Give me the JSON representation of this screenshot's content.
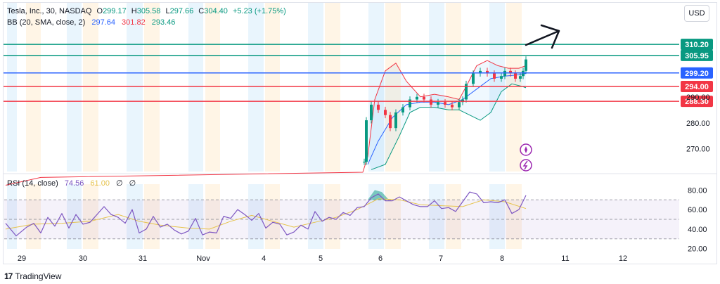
{
  "header": {
    "symbol_title": "Tesla, Inc., 30, NASDAQ",
    "ohlc": {
      "o_label": "O",
      "o_value": "299.17",
      "h_label": "H",
      "h_value": "305.58",
      "l_label": "L",
      "l_value": "297.66",
      "c_label": "C",
      "c_value": "304.40",
      "change": "+5.23 (+1.75%)"
    },
    "bb_label": "BB (20, SMA, close, 2)",
    "bb_values": [
      "297.64",
      "301.82",
      "293.46"
    ]
  },
  "rsi_legend": {
    "label": "RSI (14, close)",
    "values": [
      "74.56",
      "61.00"
    ],
    "extras": [
      "∅",
      "∅"
    ]
  },
  "currency_button": "USD",
  "footer_brand": "TradingView",
  "colors": {
    "up": "#089981",
    "down": "#f23645",
    "bb_basis": "#2962ff",
    "bb_upper": "#f23645",
    "bb_lower": "#089981",
    "rsi": "#7e57c2",
    "rsi_ma": "#e6c34d",
    "level_teal": "#089981",
    "level_blue": "#2962ff",
    "level_red": "#f23645"
  },
  "icons": [
    "arrow-right-icon",
    "plus-circle-icon",
    "lightning-icon",
    "tradingview-logo-icon"
  ],
  "chart_data": [
    {
      "type": "candlestick",
      "title": "Tesla, Inc., 30, NASDAQ",
      "x_ticks": [
        "29",
        "30",
        "31",
        "Nov",
        "4",
        "5",
        "6",
        "7",
        "8",
        "11",
        "12"
      ],
      "y_ticks": [
        "270.00",
        "280.00",
        "290.00"
      ],
      "ylim": [
        261,
        317
      ],
      "horizontal_levels": [
        {
          "value": 310.2,
          "label": "310.20",
          "color": "#089981"
        },
        {
          "value": 305.95,
          "label": "305.95",
          "color": "#089981"
        },
        {
          "value": 299.2,
          "label": "299.20",
          "color": "#2962ff"
        },
        {
          "value": 294.0,
          "label": "294.00",
          "color": "#f23645"
        },
        {
          "value": 288.3,
          "label": "288.30",
          "color": "#f23645"
        }
      ],
      "close_series": [
        {
          "t": 0,
          "v": 265
        },
        {
          "t": 51.0,
          "v": 265
        },
        {
          "t": 51.3,
          "v": 281
        },
        {
          "t": 52,
          "v": 287
        },
        {
          "t": 53,
          "v": 285
        },
        {
          "t": 54,
          "v": 283
        },
        {
          "t": 54.7,
          "v": 278
        },
        {
          "t": 55.5,
          "v": 284
        },
        {
          "t": 56.5,
          "v": 286
        },
        {
          "t": 57.5,
          "v": 289
        },
        {
          "t": 58.5,
          "v": 290
        },
        {
          "t": 59.5,
          "v": 289
        },
        {
          "t": 60.5,
          "v": 287
        },
        {
          "t": 61.5,
          "v": 288
        },
        {
          "t": 62.5,
          "v": 287
        },
        {
          "t": 63.5,
          "v": 286
        },
        {
          "t": 64.5,
          "v": 288
        },
        {
          "t": 65.0,
          "v": 289
        },
        {
          "t": 65.5,
          "v": 295
        },
        {
          "t": 66.5,
          "v": 299
        },
        {
          "t": 67.5,
          "v": 300
        },
        {
          "t": 68.5,
          "v": 299
        },
        {
          "t": 69.5,
          "v": 297
        },
        {
          "t": 70.5,
          "v": 298
        },
        {
          "t": 71.0,
          "v": 300
        },
        {
          "t": 71.8,
          "v": 299
        },
        {
          "t": 72.5,
          "v": 297
        },
        {
          "t": 73.2,
          "v": 298
        },
        {
          "t": 73.6,
          "v": 300
        },
        {
          "t": 74.0,
          "v": 304.4
        }
      ],
      "bollinger": {
        "basis": [
          {
            "t": 51.5,
            "v": 264
          },
          {
            "t": 53,
            "v": 273
          },
          {
            "t": 55,
            "v": 282
          },
          {
            "t": 57,
            "v": 287
          },
          {
            "t": 59,
            "v": 288
          },
          {
            "t": 61,
            "v": 288
          },
          {
            "t": 63,
            "v": 287
          },
          {
            "t": 65,
            "v": 289
          },
          {
            "t": 67,
            "v": 293
          },
          {
            "t": 69,
            "v": 297
          },
          {
            "t": 71,
            "v": 298
          },
          {
            "t": 73,
            "v": 298.5
          },
          {
            "t": 74,
            "v": 299
          }
        ],
        "upper": [
          {
            "t": 0,
            "v": 256
          },
          {
            "t": 5,
            "v": 259
          },
          {
            "t": 50.8,
            "v": 261
          },
          {
            "t": 51.5,
            "v": 267
          },
          {
            "t": 52.5,
            "v": 289
          },
          {
            "t": 54,
            "v": 300
          },
          {
            "t": 55.5,
            "v": 303
          },
          {
            "t": 57,
            "v": 296
          },
          {
            "t": 59,
            "v": 290
          },
          {
            "t": 61,
            "v": 291
          },
          {
            "t": 63,
            "v": 290
          },
          {
            "t": 64.5,
            "v": 289
          },
          {
            "t": 65.5,
            "v": 294
          },
          {
            "t": 67,
            "v": 302
          },
          {
            "t": 68.5,
            "v": 304
          },
          {
            "t": 70,
            "v": 302
          },
          {
            "t": 71.5,
            "v": 301
          },
          {
            "t": 73,
            "v": 301
          },
          {
            "t": 74,
            "v": 302
          }
        ],
        "lower": [
          {
            "t": 52,
            "v": 262
          },
          {
            "t": 54,
            "v": 264
          },
          {
            "t": 56,
            "v": 275
          },
          {
            "t": 57.5,
            "v": 284
          },
          {
            "t": 59,
            "v": 286
          },
          {
            "t": 61,
            "v": 286
          },
          {
            "t": 63,
            "v": 285
          },
          {
            "t": 64.5,
            "v": 285
          },
          {
            "t": 66,
            "v": 283
          },
          {
            "t": 67.5,
            "v": 281
          },
          {
            "t": 69,
            "v": 284
          },
          {
            "t": 70.5,
            "v": 292
          },
          {
            "t": 72,
            "v": 295
          },
          {
            "t": 73.5,
            "v": 294
          },
          {
            "t": 74,
            "v": 293.5
          }
        ]
      }
    },
    {
      "type": "line",
      "title": "RSI (14, close)",
      "y_ticks": [
        "80.00",
        "60.00",
        "40.00",
        "20.00"
      ],
      "ylim": [
        14,
        86
      ],
      "bands": {
        "upper": 70,
        "middle": 50,
        "lower": 30
      },
      "series": [
        {
          "name": "RSI",
          "values": [
            {
              "t": 0,
              "v": 46
            },
            {
              "t": 1.5,
              "v": 33
            },
            {
              "t": 3,
              "v": 42
            },
            {
              "t": 4,
              "v": 46
            },
            {
              "t": 5,
              "v": 36
            },
            {
              "t": 6,
              "v": 52
            },
            {
              "t": 7,
              "v": 43
            },
            {
              "t": 8,
              "v": 56
            },
            {
              "t": 9,
              "v": 41
            },
            {
              "t": 10,
              "v": 55
            },
            {
              "t": 11,
              "v": 45
            },
            {
              "t": 12,
              "v": 47
            },
            {
              "t": 13,
              "v": 55
            },
            {
              "t": 14,
              "v": 63
            },
            {
              "t": 15,
              "v": 55
            },
            {
              "t": 16,
              "v": 52
            },
            {
              "t": 17,
              "v": 46
            },
            {
              "t": 18,
              "v": 60
            },
            {
              "t": 19,
              "v": 36
            },
            {
              "t": 20,
              "v": 40
            },
            {
              "t": 21,
              "v": 53
            },
            {
              "t": 22,
              "v": 42
            },
            {
              "t": 23,
              "v": 45
            },
            {
              "t": 24,
              "v": 39
            },
            {
              "t": 25,
              "v": 35
            },
            {
              "t": 26,
              "v": 38
            },
            {
              "t": 27,
              "v": 51
            },
            {
              "t": 28,
              "v": 34
            },
            {
              "t": 29,
              "v": 37
            },
            {
              "t": 30,
              "v": 36
            },
            {
              "t": 31,
              "v": 53
            },
            {
              "t": 32,
              "v": 51
            },
            {
              "t": 33,
              "v": 60
            },
            {
              "t": 34,
              "v": 55
            },
            {
              "t": 35,
              "v": 49
            },
            {
              "t": 36,
              "v": 56
            },
            {
              "t": 37,
              "v": 41
            },
            {
              "t": 38,
              "v": 47
            },
            {
              "t": 39,
              "v": 45
            },
            {
              "t": 40,
              "v": 34
            },
            {
              "t": 41,
              "v": 37
            },
            {
              "t": 42,
              "v": 44
            },
            {
              "t": 43,
              "v": 40
            },
            {
              "t": 44,
              "v": 58
            },
            {
              "t": 45,
              "v": 48
            },
            {
              "t": 46,
              "v": 52
            },
            {
              "t": 47,
              "v": 50
            },
            {
              "t": 48,
              "v": 57
            },
            {
              "t": 49,
              "v": 54
            },
            {
              "t": 50,
              "v": 62
            },
            {
              "t": 51,
              "v": 63
            },
            {
              "t": 52,
              "v": 72
            },
            {
              "t": 53,
              "v": 76
            },
            {
              "t": 54,
              "v": 69
            },
            {
              "t": 55,
              "v": 69
            },
            {
              "t": 56,
              "v": 73
            },
            {
              "t": 57,
              "v": 69
            },
            {
              "t": 58,
              "v": 65
            },
            {
              "t": 59,
              "v": 63
            },
            {
              "t": 60,
              "v": 63
            },
            {
              "t": 61,
              "v": 69
            },
            {
              "t": 62,
              "v": 61
            },
            {
              "t": 63,
              "v": 62
            },
            {
              "t": 64,
              "v": 58
            },
            {
              "t": 65,
              "v": 68
            },
            {
              "t": 66,
              "v": 78
            },
            {
              "t": 67,
              "v": 76
            },
            {
              "t": 68,
              "v": 67
            },
            {
              "t": 69,
              "v": 68
            },
            {
              "t": 70,
              "v": 67
            },
            {
              "t": 71,
              "v": 70
            },
            {
              "t": 72,
              "v": 56
            },
            {
              "t": 73,
              "v": 60
            },
            {
              "t": 74,
              "v": 74.56
            }
          ]
        },
        {
          "name": "RSI-based MA",
          "values": [
            {
              "t": 0,
              "v": 40
            },
            {
              "t": 4,
              "v": 45
            },
            {
              "t": 8,
              "v": 46
            },
            {
              "t": 12,
              "v": 48
            },
            {
              "t": 16,
              "v": 55
            },
            {
              "t": 19,
              "v": 48
            },
            {
              "t": 22,
              "v": 44
            },
            {
              "t": 26,
              "v": 41
            },
            {
              "t": 29,
              "v": 40
            },
            {
              "t": 32,
              "v": 48
            },
            {
              "t": 35,
              "v": 54
            },
            {
              "t": 38,
              "v": 48
            },
            {
              "t": 41,
              "v": 42
            },
            {
              "t": 44,
              "v": 47
            },
            {
              "t": 47,
              "v": 52
            },
            {
              "t": 50,
              "v": 60
            },
            {
              "t": 53,
              "v": 71
            },
            {
              "t": 56,
              "v": 70
            },
            {
              "t": 59,
              "v": 65
            },
            {
              "t": 62,
              "v": 64
            },
            {
              "t": 65,
              "v": 63
            },
            {
              "t": 68,
              "v": 70
            },
            {
              "t": 71,
              "v": 68
            },
            {
              "t": 74,
              "v": 61
            }
          ]
        }
      ]
    }
  ]
}
